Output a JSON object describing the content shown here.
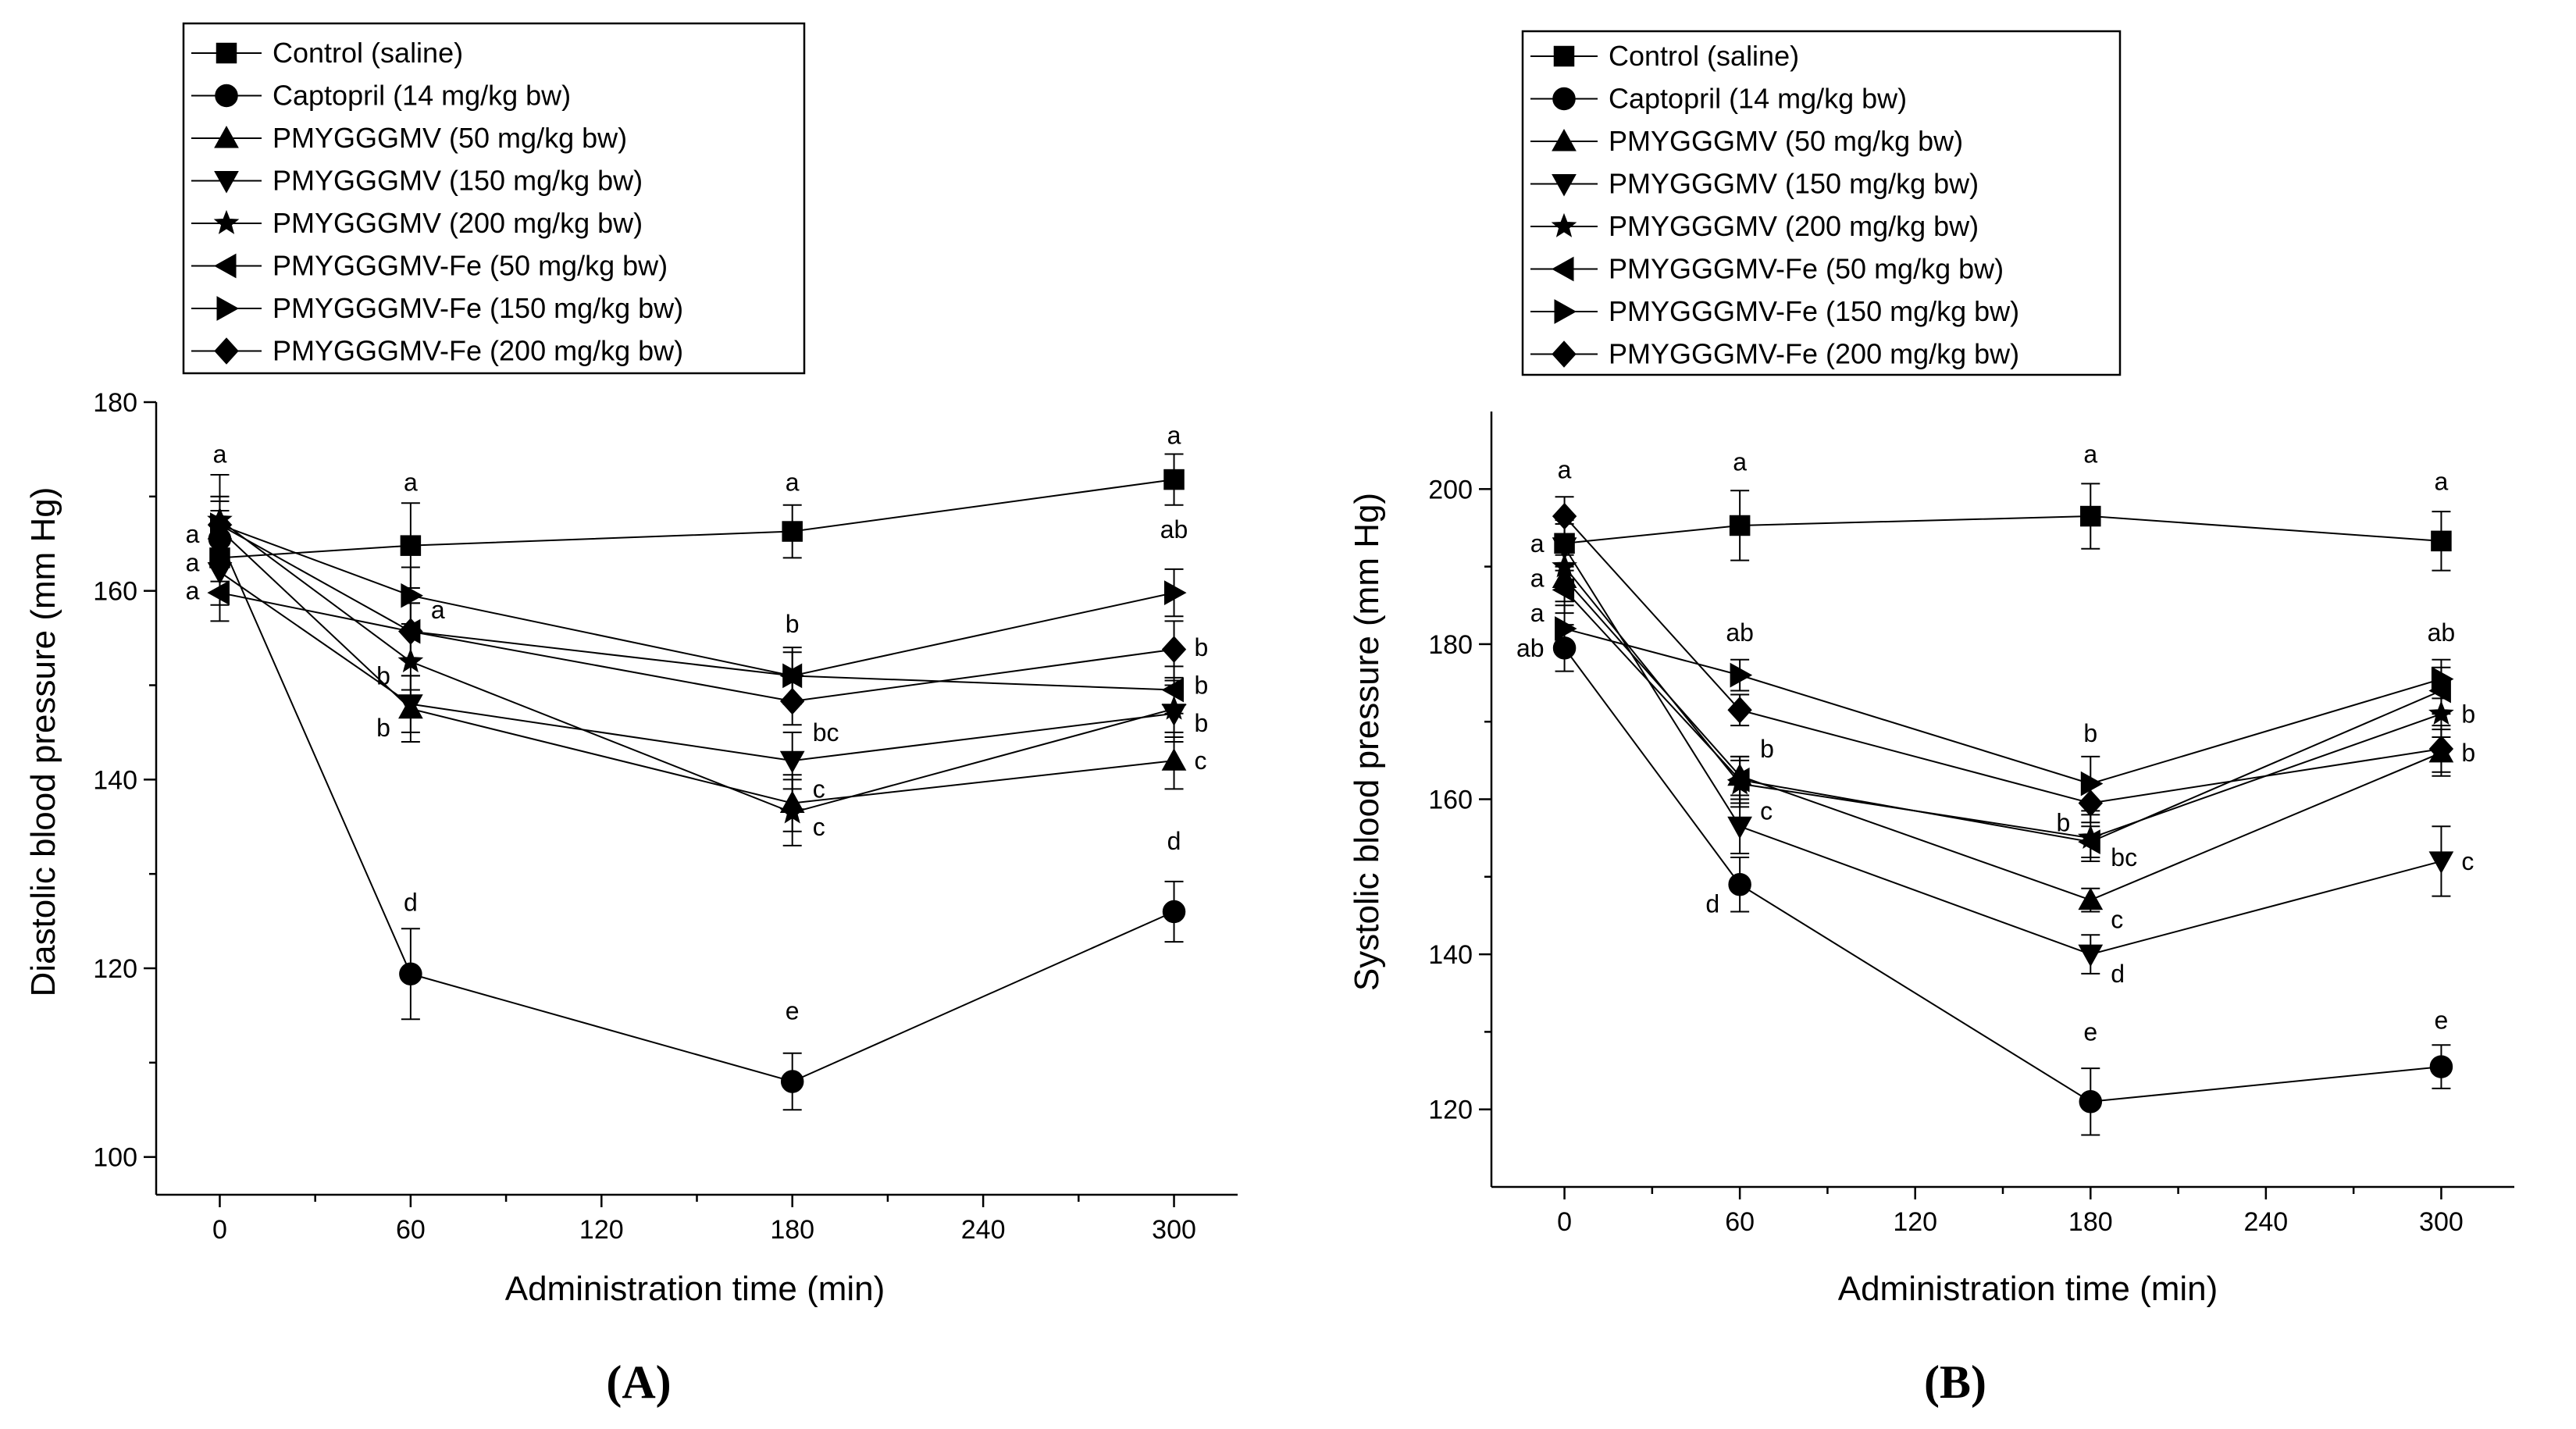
{
  "chart_data": [
    {
      "type": "line",
      "panel": "A",
      "xlabel": "Administration time (min)",
      "ylabel": "Diastolic blood pressure (mm Hg)",
      "xlim": [
        -20,
        320
      ],
      "ylim": [
        96,
        180
      ],
      "xticks": [
        0,
        60,
        120,
        180,
        240,
        300
      ],
      "yticks": [
        100,
        120,
        140,
        160,
        180
      ],
      "x": [
        0,
        60,
        180,
        300
      ],
      "legend_position": "top",
      "series": [
        {
          "name": "Control (saline)",
          "marker": "square",
          "values": [
            163.5,
            164.8,
            166.3,
            171.8
          ],
          "errors": [
            2.5,
            4.5,
            2.8,
            2.7
          ]
        },
        {
          "name": "Captopril (14 mg/kg bw)",
          "marker": "circle",
          "values": [
            165.5,
            119.4,
            108.0,
            126.0
          ],
          "errors": [
            3.0,
            4.8,
            3.0,
            3.2
          ]
        },
        {
          "name": "PMYGGGMV (50 mg/kg bw)",
          "marker": "triangle-up",
          "values": [
            166.5,
            147.5,
            137.5,
            142.0
          ],
          "errors": [
            3.0,
            3.5,
            3.0,
            3.0
          ]
        },
        {
          "name": "PMYGGGMV (150 mg/kg bw)",
          "marker": "triangle-down",
          "values": [
            162.0,
            148.0,
            142.0,
            147.0
          ],
          "errors": [
            3.5,
            3.0,
            3.0,
            3.0
          ]
        },
        {
          "name": "PMYGGGMV (200 mg/kg bw)",
          "marker": "star",
          "values": [
            167.5,
            152.5,
            136.5,
            147.5
          ],
          "errors": [
            4.8,
            3.0,
            3.5,
            3.0
          ]
        },
        {
          "name": "PMYGGGMV-Fe (50 mg/kg bw)",
          "marker": "triangle-left",
          "values": [
            159.8,
            155.7,
            151.0,
            149.5
          ],
          "errors": [
            3.0,
            3.0,
            2.5,
            2.5
          ]
        },
        {
          "name": "PMYGGGMV-Fe (150 mg/kg bw)",
          "marker": "triangle-right",
          "values": [
            167.0,
            159.5,
            151.0,
            159.8
          ],
          "errors": [
            3.0,
            3.0,
            3.0,
            2.5
          ]
        },
        {
          "name": "PMYGGGMV-Fe (200 mg/kg bw)",
          "marker": "diamond",
          "values": [
            167.0,
            155.7,
            148.3,
            153.8
          ],
          "errors": [
            3.0,
            3.0,
            2.5,
            3.0
          ]
        }
      ],
      "annotations": [
        {
          "text": "a",
          "x": 0,
          "y": 174.5,
          "placement": "center"
        },
        {
          "text": "a",
          "x": 60,
          "y": 171.5,
          "placement": "center"
        },
        {
          "text": "a",
          "x": 180,
          "y": 171.5,
          "placement": "center"
        },
        {
          "text": "a",
          "x": 300,
          "y": 176.5,
          "placement": "center"
        },
        {
          "text": "a",
          "x": 0,
          "y": 166.0,
          "placement": "left"
        },
        {
          "text": "a",
          "x": 0,
          "y": 163.0,
          "placement": "left"
        },
        {
          "text": "a",
          "x": 0,
          "y": 160.0,
          "placement": "left"
        },
        {
          "text": "a",
          "x": 60,
          "y": 158.0,
          "placement": "right"
        },
        {
          "text": "b",
          "x": 60,
          "y": 151.0,
          "placement": "left"
        },
        {
          "text": "b",
          "x": 60,
          "y": 145.5,
          "placement": "left"
        },
        {
          "text": "b",
          "x": 180,
          "y": 156.5,
          "placement": "center"
        },
        {
          "text": "bc",
          "x": 180,
          "y": 145.0,
          "placement": "right"
        },
        {
          "text": "c",
          "x": 180,
          "y": 139.0,
          "placement": "right"
        },
        {
          "text": "c",
          "x": 180,
          "y": 135.0,
          "placement": "right"
        },
        {
          "text": "d",
          "x": 60,
          "y": 127.0,
          "placement": "center"
        },
        {
          "text": "e",
          "x": 180,
          "y": 115.5,
          "placement": "center"
        },
        {
          "text": "ab",
          "x": 300,
          "y": 166.5,
          "placement": "center"
        },
        {
          "text": "b",
          "x": 300,
          "y": 154.0,
          "placement": "right"
        },
        {
          "text": "b",
          "x": 300,
          "y": 150.0,
          "placement": "right"
        },
        {
          "text": "b",
          "x": 300,
          "y": 146.0,
          "placement": "right"
        },
        {
          "text": "c",
          "x": 300,
          "y": 142.0,
          "placement": "right"
        },
        {
          "text": "d",
          "x": 300,
          "y": 133.5,
          "placement": "center"
        }
      ],
      "caption": "(A)"
    },
    {
      "type": "line",
      "panel": "B",
      "xlabel": "Administration time (min)",
      "ylabel": "Systolic blood pressure (mm Hg)",
      "xlim": [
        -25,
        325
      ],
      "ylim": [
        110,
        210
      ],
      "xticks": [
        0,
        60,
        120,
        180,
        240,
        300
      ],
      "yticks": [
        120,
        140,
        160,
        180,
        200
      ],
      "x": [
        0,
        60,
        180,
        300
      ],
      "legend_position": "top",
      "series": [
        {
          "name": "Control (saline)",
          "marker": "square",
          "values": [
            193.0,
            195.3,
            196.5,
            193.3
          ],
          "errors": [
            3.0,
            4.5,
            4.2,
            3.8
          ]
        },
        {
          "name": "Captopril (14 mg/kg bw)",
          "marker": "circle",
          "values": [
            179.5,
            149.0,
            121.0,
            125.5
          ],
          "errors": [
            3.0,
            3.5,
            4.3,
            2.8
          ]
        },
        {
          "name": "PMYGGGMV (50 mg/kg bw)",
          "marker": "triangle-up",
          "values": [
            188.5,
            163.0,
            147.0,
            166.0
          ],
          "errors": [
            3.0,
            2.5,
            1.5,
            3.0
          ]
        },
        {
          "name": "PMYGGGMV (150 mg/kg bw)",
          "marker": "triangle-down",
          "values": [
            192.5,
            156.5,
            140.0,
            152.0
          ],
          "errors": [
            3.0,
            3.5,
            2.5,
            4.5
          ]
        },
        {
          "name": "PMYGGGMV (200 mg/kg bw)",
          "marker": "star",
          "values": [
            190.0,
            162.0,
            155.0,
            171.0
          ],
          "errors": [
            3.0,
            3.0,
            3.0,
            3.0
          ]
        },
        {
          "name": "PMYGGGMV-Fe (50 mg/kg bw)",
          "marker": "triangle-left",
          "values": [
            187.0,
            162.5,
            154.5,
            174.0
          ],
          "errors": [
            3.0,
            3.0,
            2.0,
            3.0
          ]
        },
        {
          "name": "PMYGGGMV-Fe (150 mg/kg bw)",
          "marker": "triangle-right",
          "values": [
            182.0,
            176.0,
            162.0,
            175.5
          ],
          "errors": [
            3.0,
            2.0,
            3.5,
            2.5
          ]
        },
        {
          "name": "PMYGGGMV-Fe (200 mg/kg bw)",
          "marker": "diamond",
          "values": [
            196.5,
            171.5,
            159.5,
            166.5
          ],
          "errors": [
            2.5,
            2.0,
            2.5,
            3.0
          ]
        }
      ],
      "annotations": [
        {
          "text": "a",
          "x": 0,
          "y": 202.5,
          "placement": "center"
        },
        {
          "text": "a",
          "x": 60,
          "y": 203.5,
          "placement": "center"
        },
        {
          "text": "a",
          "x": 180,
          "y": 204.5,
          "placement": "center"
        },
        {
          "text": "a",
          "x": 300,
          "y": 201.0,
          "placement": "center"
        },
        {
          "text": "a",
          "x": 0,
          "y": 193.0,
          "placement": "left"
        },
        {
          "text": "a",
          "x": 0,
          "y": 188.5,
          "placement": "left"
        },
        {
          "text": "a",
          "x": 0,
          "y": 184.0,
          "placement": "left"
        },
        {
          "text": "ab",
          "x": 0,
          "y": 179.5,
          "placement": "left"
        },
        {
          "text": "ab",
          "x": 60,
          "y": 181.5,
          "placement": "center"
        },
        {
          "text": "b",
          "x": 60,
          "y": 166.5,
          "placement": "right"
        },
        {
          "text": "c",
          "x": 60,
          "y": 158.5,
          "placement": "right"
        },
        {
          "text": "d",
          "x": 60,
          "y": 146.5,
          "placement": "left"
        },
        {
          "text": "b",
          "x": 180,
          "y": 168.5,
          "placement": "center"
        },
        {
          "text": "b",
          "x": 180,
          "y": 157.0,
          "placement": "left"
        },
        {
          "text": "bc",
          "x": 180,
          "y": 152.5,
          "placement": "right"
        },
        {
          "text": "c",
          "x": 180,
          "y": 144.5,
          "placement": "right"
        },
        {
          "text": "d",
          "x": 180,
          "y": 137.5,
          "placement": "right"
        },
        {
          "text": "e",
          "x": 180,
          "y": 130.0,
          "placement": "center"
        },
        {
          "text": "ab",
          "x": 300,
          "y": 181.5,
          "placement": "center"
        },
        {
          "text": "b",
          "x": 300,
          "y": 171.0,
          "placement": "right"
        },
        {
          "text": "b",
          "x": 300,
          "y": 166.0,
          "placement": "right"
        },
        {
          "text": "c",
          "x": 300,
          "y": 152.0,
          "placement": "right"
        },
        {
          "text": "e",
          "x": 300,
          "y": 131.5,
          "placement": "center"
        }
      ],
      "caption": "(B)"
    }
  ]
}
